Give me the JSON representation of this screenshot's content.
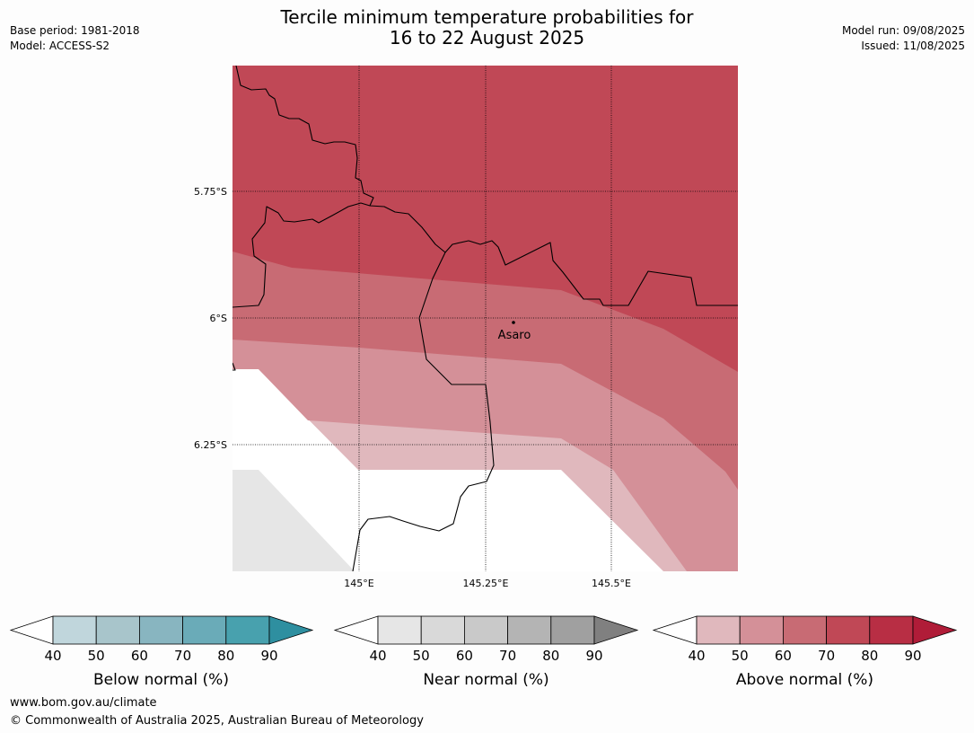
{
  "header": {
    "title_line1": "Tercile minimum temperature probabilities for",
    "title_line2": "16 to 22 August 2025",
    "base_period": "Base period: 1981-2018",
    "model": "Model: ACCESS-S2",
    "model_run": "Model run: 09/08/2025",
    "issued": "Issued: 11/08/2025"
  },
  "map": {
    "lat_labels": [
      "5.75°S",
      "6°S",
      "6.25°S"
    ],
    "lon_labels": [
      "145°E",
      "145.25°E",
      "145.5°E"
    ],
    "place": "Asaro",
    "colors": {
      "above_40_50": "#e0b8bd",
      "above_50_60": "#d49098",
      "above_60_70": "#c86b74",
      "above_70_80": "#c04856",
      "near_40_50": "#e6e6e6",
      "no_signal": "#ffffff"
    }
  },
  "colorbars": [
    {
      "label": "Below normal (%)",
      "ticks": [
        "40",
        "50",
        "60",
        "70",
        "80",
        "90"
      ],
      "colors": [
        "#c0d6dc",
        "#a8c5cb",
        "#88b5c0",
        "#6aabb8",
        "#48a1ae",
        "#2e8fa0"
      ]
    },
    {
      "label": "Near normal (%)",
      "ticks": [
        "40",
        "50",
        "60",
        "70",
        "80",
        "90"
      ],
      "colors": [
        "#e6e6e6",
        "#d9d9d9",
        "#c9c9c9",
        "#b4b4b4",
        "#a0a0a0",
        "#808080"
      ]
    },
    {
      "label": "Above normal (%)",
      "ticks": [
        "40",
        "50",
        "60",
        "70",
        "80",
        "90"
      ],
      "colors": [
        "#e0b8bd",
        "#d49098",
        "#c86b74",
        "#c04856",
        "#b82e44",
        "#b01c38"
      ]
    }
  ],
  "footer": {
    "url": "www.bom.gov.au/climate",
    "copyright": "© Commonwealth of Australia 2025, Australian Bureau of Meteorology"
  }
}
